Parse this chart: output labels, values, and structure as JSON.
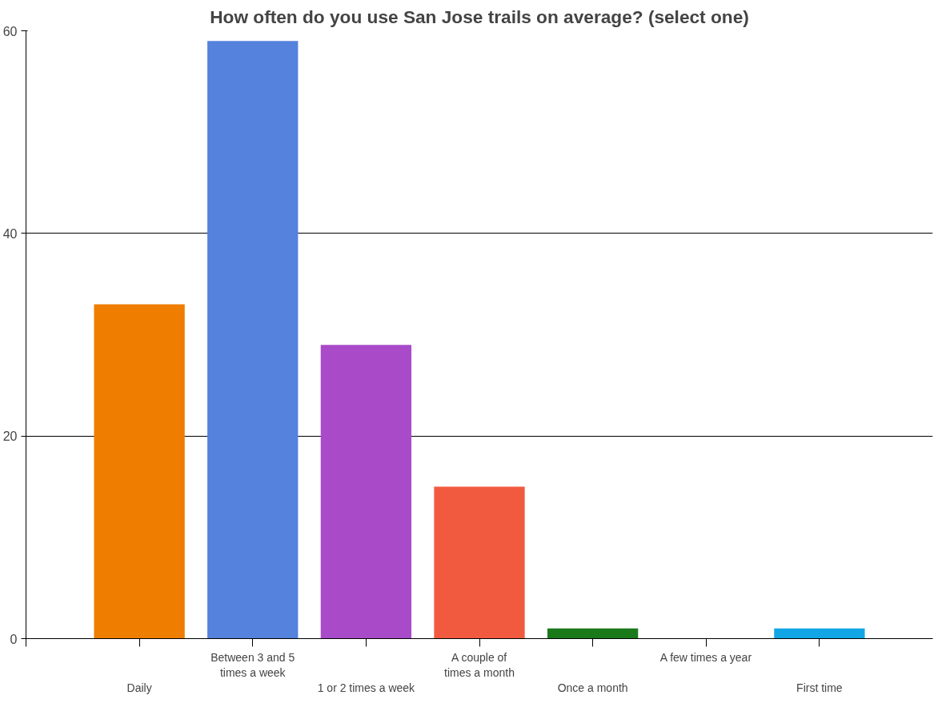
{
  "chart_data": {
    "type": "bar",
    "title": "How often do you use San Jose trails on average? (select one)",
    "categories": [
      "Daily",
      "Between 3 and 5 times a week",
      "1 or 2 times a week",
      "A couple of times a month",
      "Once a month",
      "A few times a year",
      "First time"
    ],
    "values": [
      33,
      59,
      29,
      15,
      1,
      0,
      1
    ],
    "colors": [
      "#ee7d00",
      "#5482dc",
      "#a94bc9",
      "#f25a40",
      "#1a7a1a",
      null,
      "#12a6e6"
    ],
    "ylim": [
      0,
      60
    ],
    "yticks": [
      0,
      20,
      40,
      60
    ],
    "grid": "y"
  }
}
